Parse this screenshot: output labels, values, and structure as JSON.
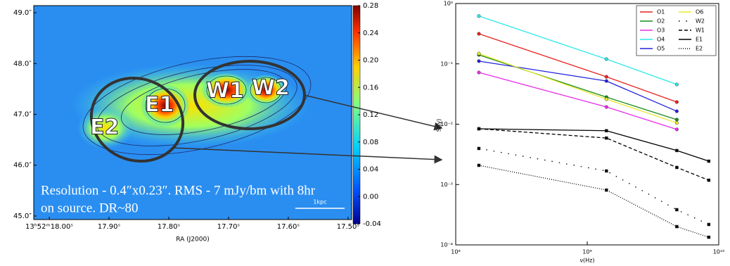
{
  "chart_data": [
    {
      "type": "image",
      "xlabel": "RA (J2000)",
      "xlim": [
        18.026,
        17.494
      ],
      "xticks": [
        {
          "value": 18.0,
          "label": "13ʰ52ᵐ18.00ˢ"
        },
        {
          "value": 17.9,
          "label": "17.90ˢ"
        },
        {
          "value": 17.8,
          "label": "17.80ˢ"
        },
        {
          "value": 17.7,
          "label": "17.70ˢ"
        },
        {
          "value": 17.6,
          "label": "17.60ˢ"
        },
        {
          "value": 17.5,
          "label": "17.50ˢ"
        }
      ],
      "ylim": [
        44.93,
        49.14
      ],
      "yticks": [
        {
          "value": 49.0,
          "label": "49.0″"
        },
        {
          "value": 48.0,
          "label": "48.0″"
        },
        {
          "value": 47.0,
          "label": "47.0″"
        },
        {
          "value": 46.0,
          "label": "46.0″"
        },
        {
          "value": 45.0,
          "label": "45.0″"
        }
      ],
      "clim": [
        -0.04,
        0.28
      ],
      "cticks": [
        0.28,
        0.24,
        {
          "value": 0.2,
          "label": "0.20"
        },
        0.16,
        0.12,
        0.08,
        0.04,
        {
          "value": 0,
          "label": "0.00"
        },
        -0.04
      ],
      "annotations": [
        "E2",
        "E1",
        "W1",
        "W2"
      ],
      "caption": [
        "Resolution - 0.4″x0.23″. RMS - 7 mJy/bm with 8hr",
        "on source. DR~80"
      ],
      "scalebar": "1kpc"
    },
    {
      "type": "line",
      "xlabel": "ν(Hz)",
      "ylabel": "S(Jy)",
      "log": true,
      "xlim": [
        100000000.0,
        10000000000.0
      ],
      "xticks": [
        {
          "value": 100000000.0,
          "label": "10⁸"
        },
        {
          "value": 1000000000.0,
          "label": "10⁹"
        },
        {
          "value": 10000000000.0,
          "label": "10¹⁰"
        }
      ],
      "ylim": [
        0.0001,
        1
      ],
      "yticks": [
        {
          "value": 1,
          "label": "10⁰"
        },
        {
          "value": 0.1,
          "label": "10⁻¹"
        },
        {
          "value": 0.01,
          "label": "10⁻²"
        },
        {
          "value": 0.001,
          "label": "10⁻³"
        },
        {
          "value": 0.0001,
          "label": "10⁻⁴"
        }
      ],
      "legend": "upper right",
      "series": [
        {
          "name": "O1",
          "color": "#e8211f",
          "style": "solid",
          "marker": "circle",
          "x": [
            150000000.0,
            1400000000.0,
            4800000000.0
          ],
          "values": [
            0.315,
            0.061,
            0.0233
          ]
        },
        {
          "name": "O2",
          "color": "#1a8a1a",
          "style": "solid",
          "marker": "circle",
          "x": [
            150000000.0,
            1400000000.0,
            4800000000.0
          ],
          "values": [
            0.141,
            0.0281,
            0.0119
          ]
        },
        {
          "name": "O3",
          "color": "#e82ee8",
          "style": "solid",
          "marker": "circle",
          "x": [
            150000000.0,
            1400000000.0,
            4800000000.0
          ],
          "values": [
            0.072,
            0.0193,
            0.0082
          ]
        },
        {
          "name": "O4",
          "color": "#2ee8e8",
          "style": "solid",
          "marker": "circle",
          "x": [
            150000000.0,
            1400000000.0,
            4800000000.0
          ],
          "values": [
            0.62,
            0.12,
            0.0456
          ]
        },
        {
          "name": "O5",
          "color": "#2222dd",
          "style": "solid",
          "marker": "circle",
          "x": [
            150000000.0,
            1400000000.0,
            4800000000.0
          ],
          "values": [
            0.111,
            0.052,
            0.0164
          ]
        },
        {
          "name": "O6",
          "color": "#e8e82e",
          "style": "solid",
          "marker": "circle",
          "x": [
            150000000.0,
            1400000000.0,
            4800000000.0
          ],
          "values": [
            0.148,
            0.026,
            0.0105
          ]
        },
        {
          "name": "W2",
          "color": "#000000",
          "style": "dots",
          "marker": "square",
          "x": [
            150000000.0,
            1400000000.0,
            4800000000.0,
            8400000000.0
          ],
          "values": [
            0.00396,
            0.00168,
            0.000383,
            0.000218
          ]
        },
        {
          "name": "W1",
          "color": "#000000",
          "style": "dashed",
          "marker": "square",
          "x": [
            150000000.0,
            1400000000.0,
            4800000000.0,
            8400000000.0
          ],
          "values": [
            0.0084,
            0.0059,
            0.00192,
            0.00118
          ]
        },
        {
          "name": "E1",
          "color": "#000000",
          "style": "solid",
          "marker": "square",
          "x": [
            150000000.0,
            1400000000.0,
            4800000000.0,
            8400000000.0
          ],
          "values": [
            0.0084,
            0.0078,
            0.00366,
            0.00244
          ]
        },
        {
          "name": "E2",
          "color": "#000000",
          "style": "dotted",
          "marker": "square",
          "x": [
            150000000.0,
            1400000000.0,
            4800000000.0,
            8400000000.0
          ],
          "values": [
            0.00208,
            0.00081,
            0.000201,
            0.000134
          ]
        }
      ]
    }
  ]
}
